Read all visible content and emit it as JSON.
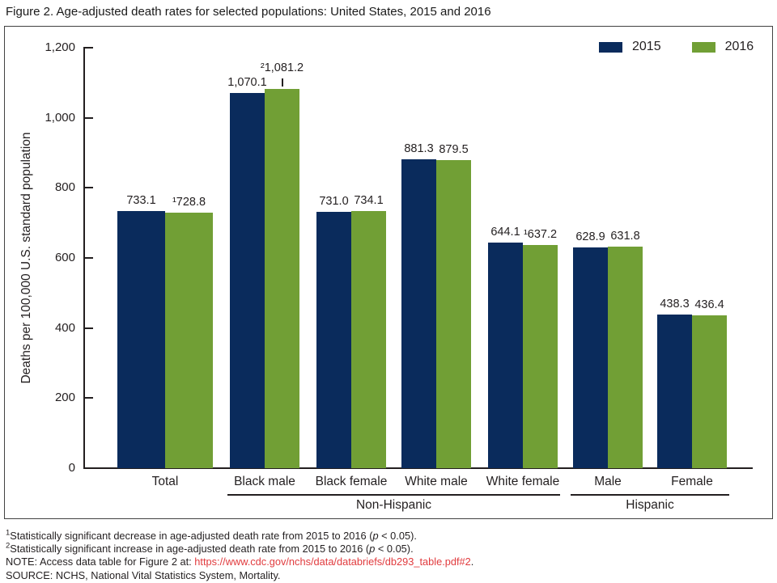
{
  "title": "Figure 2. Age-adjusted death rates for selected populations: United States, 2015 and 2016",
  "legend": {
    "items": [
      {
        "label": "2015",
        "color": "#0a2b5c"
      },
      {
        "label": "2016",
        "color": "#719f35"
      }
    ]
  },
  "chart_data": {
    "type": "bar",
    "title": "Figure 2. Age-adjusted death rates for selected populations: United States, 2015 and 2016",
    "ylabel": "Deaths per 100,000 U.S. standard population",
    "xlabel": "",
    "ylim": [
      0,
      1200
    ],
    "grid": false,
    "legend_position": "top-right",
    "yticks": [
      {
        "value": 0,
        "label": "0"
      },
      {
        "value": 200,
        "label": "200"
      },
      {
        "value": 400,
        "label": "400"
      },
      {
        "value": 600,
        "label": "600"
      },
      {
        "value": 800,
        "label": "800"
      },
      {
        "value": 1000,
        "label": "1,000"
      },
      {
        "value": 1200,
        "label": "1,200"
      }
    ],
    "categories": [
      "Total",
      "Black male",
      "Black female",
      "White male",
      "White female",
      "Male",
      "Female"
    ],
    "category_groups": [
      {
        "label": "Non-Hispanic",
        "from": 1,
        "to": 4
      },
      {
        "label": "Hispanic",
        "from": 5,
        "to": 6
      }
    ],
    "series": [
      {
        "name": "2015",
        "color": "#0a2b5c",
        "values": [
          733.1,
          1070.1,
          731.0,
          881.3,
          644.1,
          628.9,
          438.3
        ],
        "labels": [
          {
            "text": "733.1"
          },
          {
            "text": "1,070.1"
          },
          {
            "text": "731.0"
          },
          {
            "text": "881.3"
          },
          {
            "text": "644.1"
          },
          {
            "text": "628.9"
          },
          {
            "text": "438.3"
          }
        ]
      },
      {
        "name": "2016",
        "color": "#719f35",
        "values": [
          728.8,
          1081.2,
          734.1,
          879.5,
          637.2,
          631.8,
          436.4
        ],
        "labels": [
          {
            "text": "¹728.8"
          },
          {
            "text": "²1,081.2",
            "leader": true
          },
          {
            "text": "734.1"
          },
          {
            "text": "879.5"
          },
          {
            "text": "¹637.2"
          },
          {
            "text": "631.8"
          },
          {
            "text": "436.4"
          }
        ]
      }
    ]
  },
  "footnotes": [
    {
      "marker": "1",
      "before": "Statistically significant decrease in age-adjusted death rate from 2015 to 2016 (",
      "italic": "p",
      "after": " < 0.05)."
    },
    {
      "marker": "2",
      "before": "Statistically significant increase in age-adjusted death rate from 2015 to 2016 (",
      "italic": "p",
      "after": " < 0.05)."
    }
  ],
  "note": {
    "prefix": "NOTE: Access data table for Figure 2 at: ",
    "link": "https://www.cdc.gov/nchs/data/databriefs/db293_table.pdf#2",
    "suffix": ".",
    "link_color": "#e13b3e"
  },
  "source": "SOURCE: NCHS, National Vital Statistics System, Mortality.",
  "colors": {
    "axis": "#231f20",
    "box_border": "#424242",
    "text": "#231f20"
  }
}
